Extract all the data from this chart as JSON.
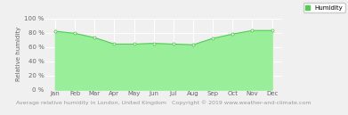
{
  "months": [
    "Jan",
    "Feb",
    "Mar",
    "Apr",
    "May",
    "Jun",
    "Jul",
    "Aug",
    "Sep",
    "Oct",
    "Nov",
    "Dec"
  ],
  "humidity": [
    82,
    79,
    73,
    64,
    64,
    65,
    64,
    63,
    72,
    78,
    83,
    83
  ],
  "ylim": [
    0,
    100
  ],
  "ylabel": "Relative humidity",
  "xlabel": "Average relative humidity in London, United Kingdom   Copyright © 2019 www.weather-and-climate.com",
  "legend_label": "Humidity",
  "line_color": "#55cc55",
  "fill_color": "#99ee99",
  "marker_color": "#ffffff",
  "marker_edge_color": "#55cc55",
  "bg_color": "#f0f0f0",
  "plot_bg_color": "#f0f0f0",
  "grid_color": "#ffffff",
  "tick_fontsize": 5,
  "ylabel_fontsize": 5,
  "xlabel_fontsize": 4.5
}
